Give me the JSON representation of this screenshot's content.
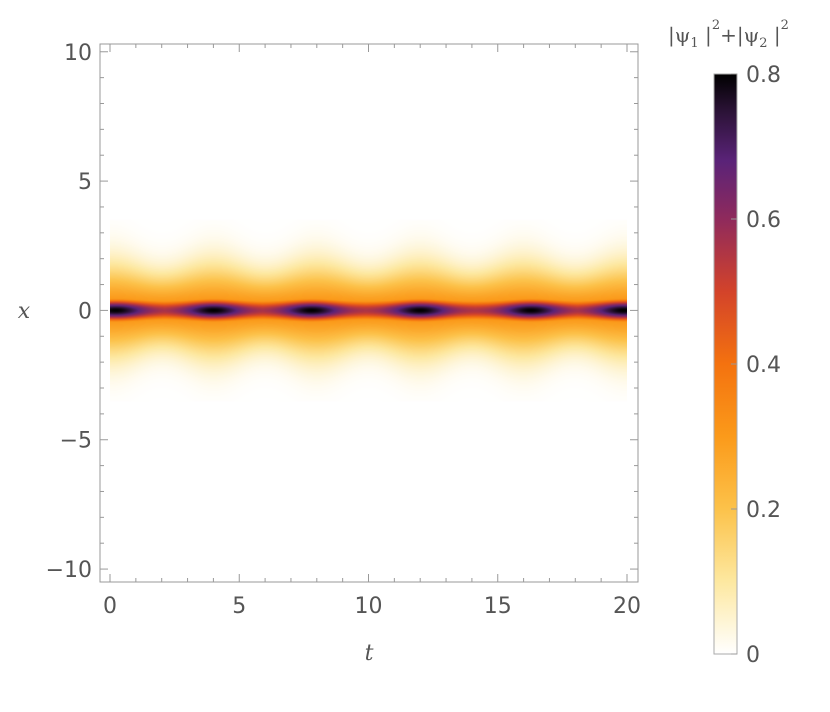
{
  "chart_data": {
    "type": "heatmap",
    "title": "",
    "xlabel": "t",
    "ylabel": "x",
    "xlim": [
      0,
      20
    ],
    "ylim": [
      -10.5,
      10.3
    ],
    "x_ticks": [
      0,
      5,
      10,
      15,
      20
    ],
    "y_ticks": [
      -10,
      -5,
      0,
      5,
      10
    ],
    "x_tick_labels": [
      "0",
      "5",
      "10",
      "15",
      "20"
    ],
    "y_tick_labels": [
      "−10",
      "−5",
      "0",
      "5",
      "10"
    ],
    "field": {
      "description_var": "|psi1|^2+|psi2|^2",
      "center_x": 0,
      "peak_t": [
        0.2,
        4.0,
        7.8,
        12.0,
        16.3,
        19.9
      ],
      "peak_value": 0.8,
      "trough_value": 0.55,
      "core_halfwidth_x": 0.45,
      "outer_halfwidth_x": 1.5
    },
    "colorbar": {
      "title_parts": [
        "|ψ",
        "1",
        " |",
        "2",
        "+|ψ",
        "2",
        " |",
        "2"
      ],
      "range": [
        0,
        0.8
      ],
      "ticks": [
        0,
        0.2,
        0.4,
        0.6,
        0.8
      ],
      "tick_labels": [
        "0",
        "0.2",
        "0.4",
        "0.6",
        "0.8"
      ],
      "colors": [
        {
          "v": 0.0,
          "c": "#ffffff"
        },
        {
          "v": 0.1,
          "c": "#fde8a0"
        },
        {
          "v": 0.2,
          "c": "#fcc24a"
        },
        {
          "v": 0.3,
          "c": "#fb9a1a"
        },
        {
          "v": 0.4,
          "c": "#f4720f"
        },
        {
          "v": 0.5,
          "c": "#d3432a"
        },
        {
          "v": 0.6,
          "c": "#8f2a5c"
        },
        {
          "v": 0.68,
          "c": "#5a2378"
        },
        {
          "v": 0.75,
          "c": "#2a1235"
        },
        {
          "v": 0.8,
          "c": "#000000"
        }
      ]
    }
  }
}
